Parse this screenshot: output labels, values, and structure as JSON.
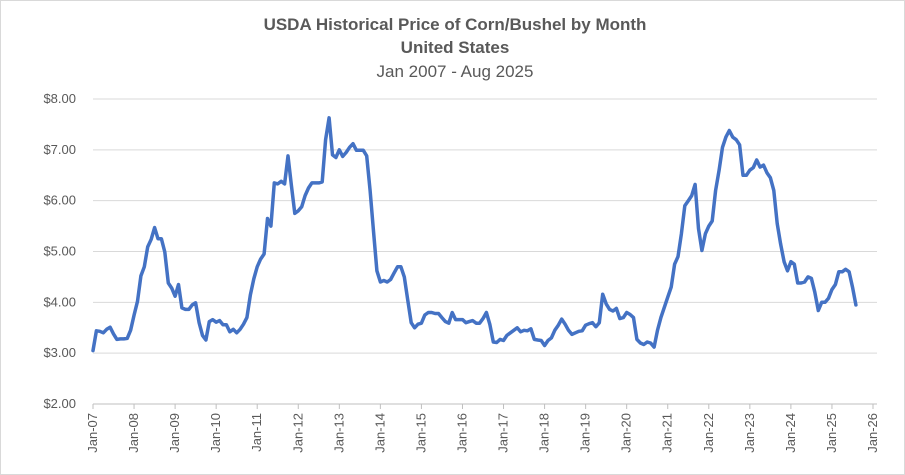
{
  "chart_data": {
    "type": "line",
    "title": "USDA Historical Price of Corn/Bushel by Month",
    "title_line2": "United States",
    "subtitle": "Jan 2007 - Aug 2025",
    "xlabel": "",
    "ylabel": "",
    "ylim": [
      2,
      8
    ],
    "grid": true,
    "legend": "none",
    "line_color": "#4472C4",
    "y_ticks": [
      "$2.00",
      "$3.00",
      "$4.00",
      "$5.00",
      "$6.00",
      "$7.00",
      "$8.00"
    ],
    "x_ticks": [
      "Jan-07",
      "Jan-08",
      "Jan-09",
      "Jan-10",
      "Jan-11",
      "Jan-12",
      "Jan-13",
      "Jan-14",
      "Jan-15",
      "Jan-16",
      "Jan-17",
      "Jan-18",
      "Jan-19",
      "Jan-20",
      "Jan-21",
      "Jan-22",
      "Jan-23",
      "Jan-24",
      "Jan-25",
      "Jan-26"
    ],
    "x_start": "2007-01",
    "series": [
      {
        "values": [
          3.05,
          3.44,
          3.43,
          3.4,
          3.47,
          3.51,
          3.38,
          3.27,
          3.28,
          3.28,
          3.29,
          3.45,
          3.75,
          4.02,
          4.52,
          4.7,
          5.09,
          5.24,
          5.47,
          5.25,
          5.25,
          4.99,
          4.38,
          4.28,
          4.12,
          4.35,
          3.89,
          3.86,
          3.86,
          3.95,
          3.99,
          3.6,
          3.35,
          3.26,
          3.62,
          3.66,
          3.61,
          3.64,
          3.56,
          3.56,
          3.42,
          3.47,
          3.4,
          3.47,
          3.57,
          3.7,
          4.15,
          4.46,
          4.7,
          4.85,
          4.95,
          5.65,
          5.5,
          6.35,
          6.33,
          6.38,
          6.33,
          6.88,
          6.3,
          5.75,
          5.8,
          5.88,
          6.1,
          6.25,
          6.35,
          6.35,
          6.35,
          6.37,
          7.2,
          7.63,
          6.9,
          6.85,
          7.0,
          6.87,
          6.95,
          7.05,
          7.12,
          6.99,
          6.99,
          6.99,
          6.88,
          6.2,
          5.4,
          4.62,
          4.4,
          4.43,
          4.4,
          4.45,
          4.58,
          4.7,
          4.7,
          4.5,
          4.05,
          3.6,
          3.5,
          3.57,
          3.59,
          3.75,
          3.8,
          3.8,
          3.78,
          3.78,
          3.7,
          3.62,
          3.59,
          3.8,
          3.66,
          3.66,
          3.66,
          3.6,
          3.62,
          3.64,
          3.59,
          3.59,
          3.68,
          3.8,
          3.57,
          3.22,
          3.21,
          3.27,
          3.25,
          3.35,
          3.4,
          3.45,
          3.5,
          3.42,
          3.45,
          3.44,
          3.48,
          3.27,
          3.26,
          3.25,
          3.15,
          3.25,
          3.3,
          3.45,
          3.55,
          3.67,
          3.57,
          3.45,
          3.37,
          3.4,
          3.43,
          3.44,
          3.55,
          3.58,
          3.6,
          3.52,
          3.6,
          4.16,
          3.97,
          3.86,
          3.83,
          3.88,
          3.68,
          3.7,
          3.8,
          3.76,
          3.7,
          3.27,
          3.2,
          3.17,
          3.22,
          3.2,
          3.12,
          3.45,
          3.7,
          3.9,
          4.1,
          4.3,
          4.75,
          4.9,
          5.35,
          5.9,
          6.0,
          6.1,
          6.32,
          5.45,
          5.02,
          5.35,
          5.5,
          5.6,
          6.2,
          6.6,
          7.05,
          7.25,
          7.38,
          7.25,
          7.2,
          7.1,
          6.5,
          6.5,
          6.6,
          6.65,
          6.8,
          6.66,
          6.7,
          6.55,
          6.45,
          6.2,
          5.55,
          5.15,
          4.8,
          4.62,
          4.8,
          4.75,
          4.38,
          4.38,
          4.4,
          4.5,
          4.47,
          4.2,
          3.84,
          4.0,
          4.0,
          4.08,
          4.25,
          4.35,
          4.6,
          4.6,
          4.65,
          4.6,
          4.3,
          3.95
        ]
      }
    ]
  }
}
